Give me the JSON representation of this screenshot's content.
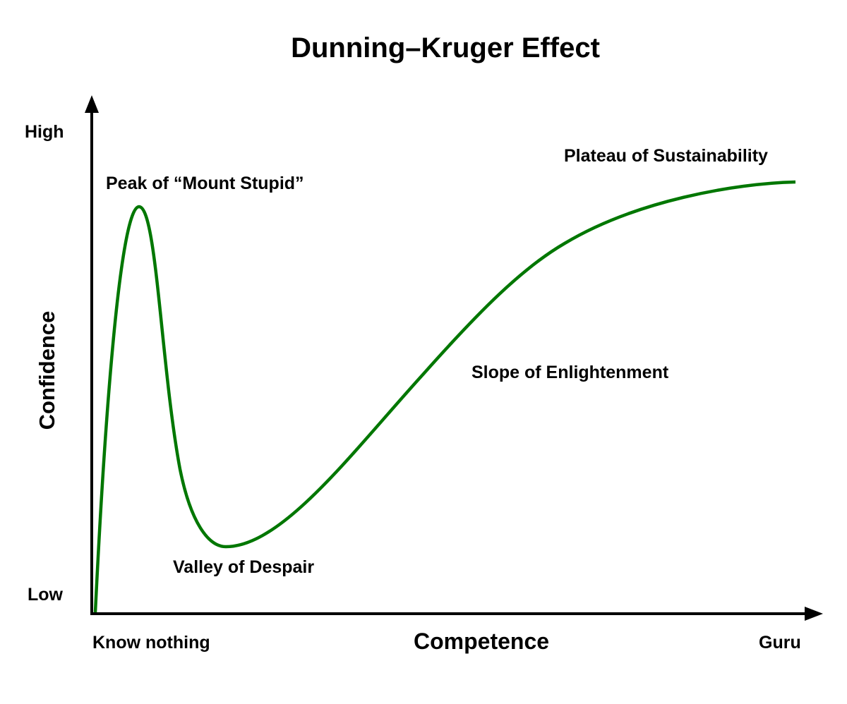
{
  "title": "Dunning–Kruger Effect",
  "y_axis": {
    "label": "Confidence",
    "high": "High",
    "low": "Low"
  },
  "x_axis": {
    "label": "Competence",
    "start": "Know nothing",
    "end": "Guru"
  },
  "annotations": {
    "peak": "Peak of “Mount Stupid”",
    "valley": "Valley of Despair",
    "slope": "Slope of Enlightenment",
    "plateau": "Plateau of Sustainability"
  },
  "colors": {
    "curve": "#007700",
    "axes": "#000000"
  }
}
